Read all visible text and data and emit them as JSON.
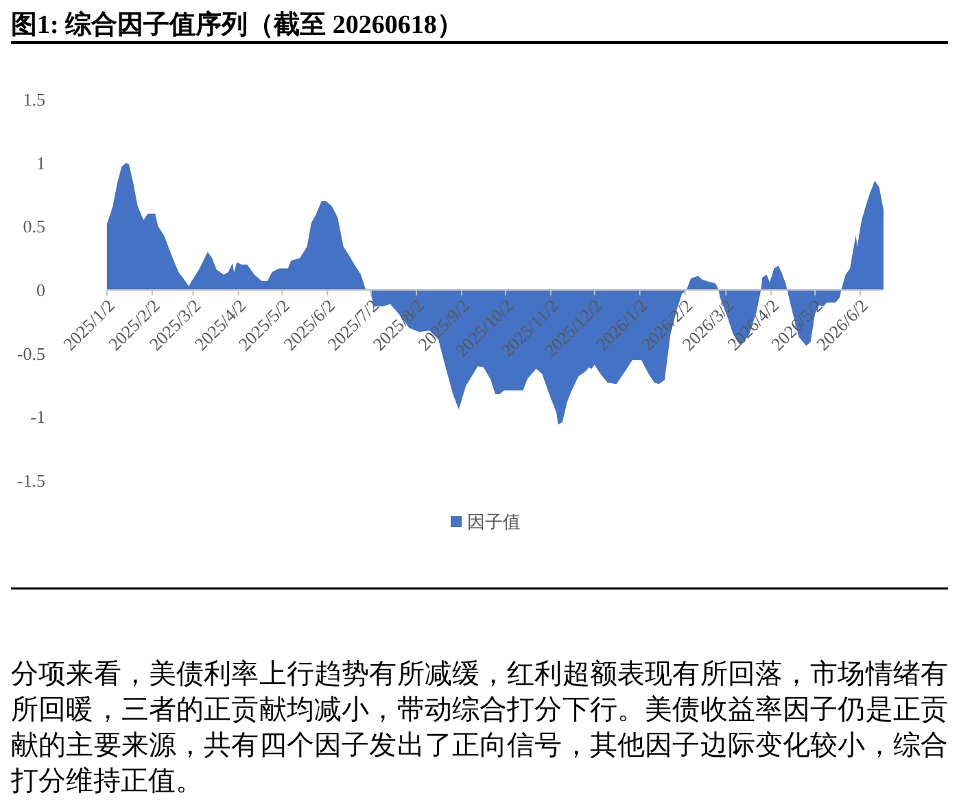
{
  "chart_data": {
    "type": "area",
    "title": "图1: 综合因子值序列（截至 20260618）",
    "x": [
      "2025-01-02",
      "2025-01-06",
      "2025-01-09",
      "2025-01-12",
      "2025-01-15",
      "2025-01-17",
      "2025-01-20",
      "2025-01-23",
      "2025-01-27",
      "2025-01-30",
      "2025-02-04",
      "2025-02-06",
      "2025-02-10",
      "2025-02-15",
      "2025-02-20",
      "2025-02-24",
      "2025-02-27",
      "2025-03-01",
      "2025-03-06",
      "2025-03-09",
      "2025-03-12",
      "2025-03-15",
      "2025-03-18",
      "2025-03-23",
      "2025-03-26",
      "2025-03-29",
      "2025-03-30",
      "2025-04-01",
      "2025-04-04",
      "2025-04-08",
      "2025-04-13",
      "2025-04-18",
      "2025-04-22",
      "2025-04-25",
      "2025-04-30",
      "2025-05-06",
      "2025-05-08",
      "2025-05-14",
      "2025-05-19",
      "2025-05-22",
      "2025-05-25",
      "2025-05-29",
      "2025-06-01",
      "2025-06-05",
      "2025-06-09",
      "2025-06-13",
      "2025-06-17",
      "2025-06-21",
      "2025-06-25",
      "2025-06-28",
      "2025-07-01",
      "2025-07-04",
      "2025-07-10",
      "2025-07-15",
      "2025-07-21",
      "2025-07-28",
      "2025-08-04",
      "2025-08-11",
      "2025-08-17",
      "2025-08-22",
      "2025-08-27",
      "2025-08-31",
      "2025-09-05",
      "2025-09-10",
      "2025-09-13",
      "2025-09-17",
      "2025-09-22",
      "2025-09-25",
      "2025-09-28",
      "2025-10-01",
      "2025-10-14",
      "2025-10-17",
      "2025-10-23",
      "2025-10-27",
      "2025-11-01",
      "2025-11-06",
      "2025-11-07",
      "2025-11-10",
      "2025-11-13",
      "2025-11-16",
      "2025-11-21",
      "2025-11-26",
      "2025-11-28",
      "2025-11-30",
      "2025-12-02",
      "2025-12-06",
      "2025-12-11",
      "2025-12-17",
      "2025-12-23",
      "2025-12-28",
      "2026-01-03",
      "2026-01-08",
      "2026-01-12",
      "2026-01-15",
      "2026-01-19",
      "2026-01-23",
      "2026-01-28",
      "2026-01-31",
      "2026-02-03",
      "2026-02-06",
      "2026-02-11",
      "2026-02-14",
      "2026-02-23",
      "2026-02-25",
      "2026-02-26",
      "2026-03-03",
      "2026-03-07",
      "2026-03-12",
      "2026-03-18",
      "2026-03-23",
      "2026-03-26",
      "2026-03-27",
      "2026-03-30",
      "2026-04-01",
      "2026-04-04",
      "2026-04-07",
      "2026-04-09",
      "2026-04-12",
      "2026-04-13",
      "2026-04-15",
      "2026-04-18",
      "2026-04-21",
      "2026-04-26",
      "2026-04-29",
      "2026-05-02",
      "2026-05-05",
      "2026-05-08",
      "2026-05-10",
      "2026-05-16",
      "2026-05-19",
      "2026-05-20",
      "2026-05-23",
      "2026-05-26",
      "2026-05-30",
      "2026-05-31",
      "2026-06-03",
      "2026-06-08",
      "2026-06-12",
      "2026-06-15",
      "2026-06-18"
    ],
    "series": [
      {
        "name": "因子值",
        "color": "#4472c4",
        "values": [
          0.52,
          0.66,
          0.84,
          0.97,
          1.0,
          0.99,
          0.84,
          0.66,
          0.55,
          0.6,
          0.6,
          0.5,
          0.43,
          0.28,
          0.14,
          0.08,
          0.03,
          0.07,
          0.16,
          0.23,
          0.3,
          0.25,
          0.16,
          0.12,
          0.14,
          0.21,
          0.14,
          0.22,
          0.2,
          0.2,
          0.12,
          0.07,
          0.07,
          0.14,
          0.17,
          0.17,
          0.23,
          0.25,
          0.34,
          0.53,
          0.59,
          0.7,
          0.7,
          0.66,
          0.57,
          0.34,
          0.27,
          0.19,
          0.12,
          0.01,
          0,
          -0.13,
          -0.13,
          -0.11,
          -0.19,
          -0.3,
          -0.33,
          -0.32,
          -0.39,
          -0.61,
          -0.82,
          -0.94,
          -0.75,
          -0.66,
          -0.6,
          -0.61,
          -0.71,
          -0.82,
          -0.82,
          -0.79,
          -0.79,
          -0.7,
          -0.62,
          -0.66,
          -0.82,
          -0.97,
          -1.06,
          -1.04,
          -0.89,
          -0.8,
          -0.68,
          -0.64,
          -0.61,
          -0.62,
          -0.59,
          -0.66,
          -0.73,
          -0.74,
          -0.64,
          -0.55,
          -0.55,
          -0.66,
          -0.73,
          -0.74,
          -0.71,
          -0.35,
          -0.13,
          -0.03,
          0,
          0.09,
          0.11,
          0.08,
          0.05,
          0,
          -0.06,
          -0.21,
          -0.35,
          -0.44,
          -0.35,
          -0.17,
          0,
          0.1,
          0.12,
          0.06,
          0.17,
          0.19,
          0.14,
          0.05,
          0,
          -0.1,
          -0.24,
          -0.37,
          -0.44,
          -0.41,
          -0.19,
          -0.12,
          -0.13,
          -0.1,
          -0.1,
          -0.06,
          0,
          0.12,
          0.17,
          0.43,
          0.34,
          0.55,
          0.74,
          0.86,
          0.81,
          0.63
        ]
      }
    ],
    "xlim": [
      "2025-01-02",
      "2026-06-18"
    ],
    "xticks": [
      {
        "value": "2025-01-02",
        "label": "2025/1/2"
      },
      {
        "value": "2025-02-02",
        "label": "2025/2/2"
      },
      {
        "value": "2025-03-02",
        "label": "2025/3/2"
      },
      {
        "value": "2025-04-02",
        "label": "2025/4/2"
      },
      {
        "value": "2025-05-02",
        "label": "2025/5/2"
      },
      {
        "value": "2025-06-02",
        "label": "2025/6/2"
      },
      {
        "value": "2025-07-02",
        "label": "2025/7/2"
      },
      {
        "value": "2025-08-02",
        "label": "2025/8/2"
      },
      {
        "value": "2025-09-02",
        "label": "2025/9/2"
      },
      {
        "value": "2025-10-02",
        "label": "2025/10/2"
      },
      {
        "value": "2025-11-02",
        "label": "2025/11/2"
      },
      {
        "value": "2025-12-02",
        "label": "2025/12/2"
      },
      {
        "value": "2026-01-02",
        "label": "2026/1/2"
      },
      {
        "value": "2026-02-02",
        "label": "2026/2/2"
      },
      {
        "value": "2026-03-02",
        "label": "2026/3/2"
      },
      {
        "value": "2026-04-02",
        "label": "2026/4/2"
      },
      {
        "value": "2026-05-02",
        "label": "2026/5/2"
      },
      {
        "value": "2026-06-02",
        "label": "2026/6/2"
      }
    ],
    "ylim": [
      -1.5,
      1.5
    ],
    "yticks": [
      -1.5,
      -1,
      -0.5,
      0,
      0.5,
      1,
      1.5
    ],
    "legend": "bottom",
    "annotations": [
      "分项来看，美债利率上行趋势有所减缓，红利超额表现有所回落，市场情绪有所回暖，三者的正贡献均减小，带动综合打分下行。美债收益率因子仍是正贡献的主要来源，共有四个因子发出了正向信号，其他因子边际变化较小，综合打分维持正值。"
    ]
  }
}
